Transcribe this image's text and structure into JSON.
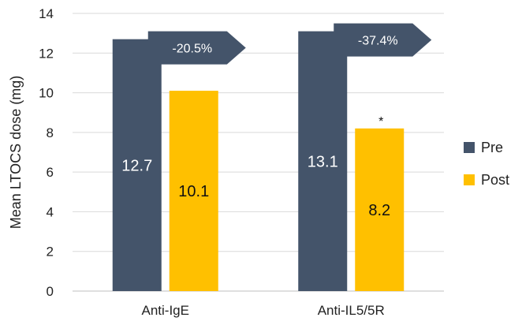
{
  "chart_data": {
    "type": "bar",
    "categories": [
      "Anti-IgE",
      "Anti-IL5/5R"
    ],
    "series": [
      {
        "name": "Pre",
        "values": [
          12.7,
          13.1
        ],
        "color": "#44546A",
        "label_color": "#ffffff"
      },
      {
        "name": "Post",
        "values": [
          10.1,
          8.2
        ],
        "color": "#FFC000",
        "label_color": "#111111"
      }
    ],
    "data_labels": [
      [
        "12.7",
        "13.1"
      ],
      [
        "10.1",
        "8.2"
      ]
    ],
    "ylabel": "Mean LTOCS dose (mg)",
    "xlabel": "",
    "ylim": [
      0,
      14
    ],
    "yticks": [
      0,
      2,
      4,
      6,
      8,
      10,
      12,
      14
    ],
    "grid": true,
    "legend_position": "right",
    "callouts": [
      {
        "category": "Anti-IgE",
        "text": "-20.5%"
      },
      {
        "category": "Anti-IL5/5R",
        "text": "-37.4%"
      }
    ],
    "annotations": [
      {
        "category": "Anti-IL5/5R",
        "series": "Post",
        "text": "*"
      }
    ]
  }
}
